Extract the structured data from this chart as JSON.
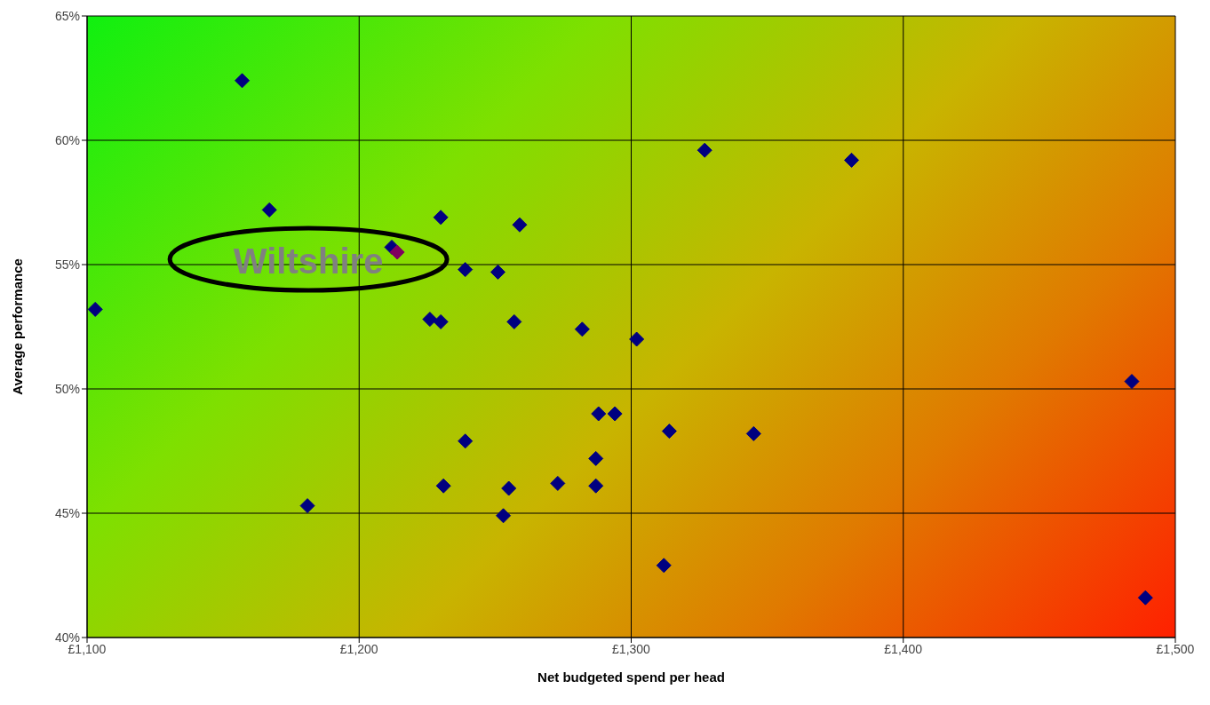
{
  "chart_data": {
    "type": "scatter",
    "xlabel": "Net budgeted spend per head",
    "ylabel": "Average performance",
    "xlim": [
      1100,
      1500
    ],
    "xticks": [
      {
        "value": 1100,
        "label": "£1,100"
      },
      {
        "value": 1200,
        "label": "£1,200"
      },
      {
        "value": 1300,
        "label": "£1,300"
      },
      {
        "value": 1400,
        "label": "£1,400"
      },
      {
        "value": 1500,
        "label": "£1,500"
      }
    ],
    "ylim": [
      40,
      65
    ],
    "yticks": [
      {
        "value": 40,
        "label": "40%"
      },
      {
        "value": 45,
        "label": "45%"
      },
      {
        "value": 50,
        "label": "50%"
      },
      {
        "value": 55,
        "label": "55%"
      },
      {
        "value": 60,
        "label": "60%"
      },
      {
        "value": 65,
        "label": "65%"
      }
    ],
    "grid": true,
    "legend": false,
    "marker": "diamond",
    "series": [
      {
        "color": "#000080",
        "x": [
          1103,
          1157,
          1167,
          1181,
          1212,
          1230,
          1226,
          1230,
          1239,
          1251,
          1259,
          1257,
          1239,
          1231,
          1255,
          1253,
          1273,
          1282,
          1302,
          1288,
          1294,
          1287,
          1287,
          1314,
          1345,
          1312,
          1327,
          1381,
          1484,
          1489
        ],
        "values": [
          53.2,
          62.4,
          57.2,
          45.3,
          55.7,
          56.9,
          52.8,
          52.7,
          54.8,
          54.7,
          56.6,
          52.7,
          47.9,
          46.1,
          46.0,
          44.9,
          46.2,
          52.4,
          52.0,
          49.0,
          49.0,
          47.2,
          46.1,
          48.3,
          48.2,
          42.9,
          59.6,
          59.2,
          50.3,
          41.6
        ]
      },
      {
        "color": "#800060",
        "x": [
          1214
        ],
        "values": [
          55.5
        ]
      }
    ],
    "annotations": [
      {
        "text": "Wiltshire",
        "x": 1214,
        "y": 55.5
      }
    ]
  }
}
